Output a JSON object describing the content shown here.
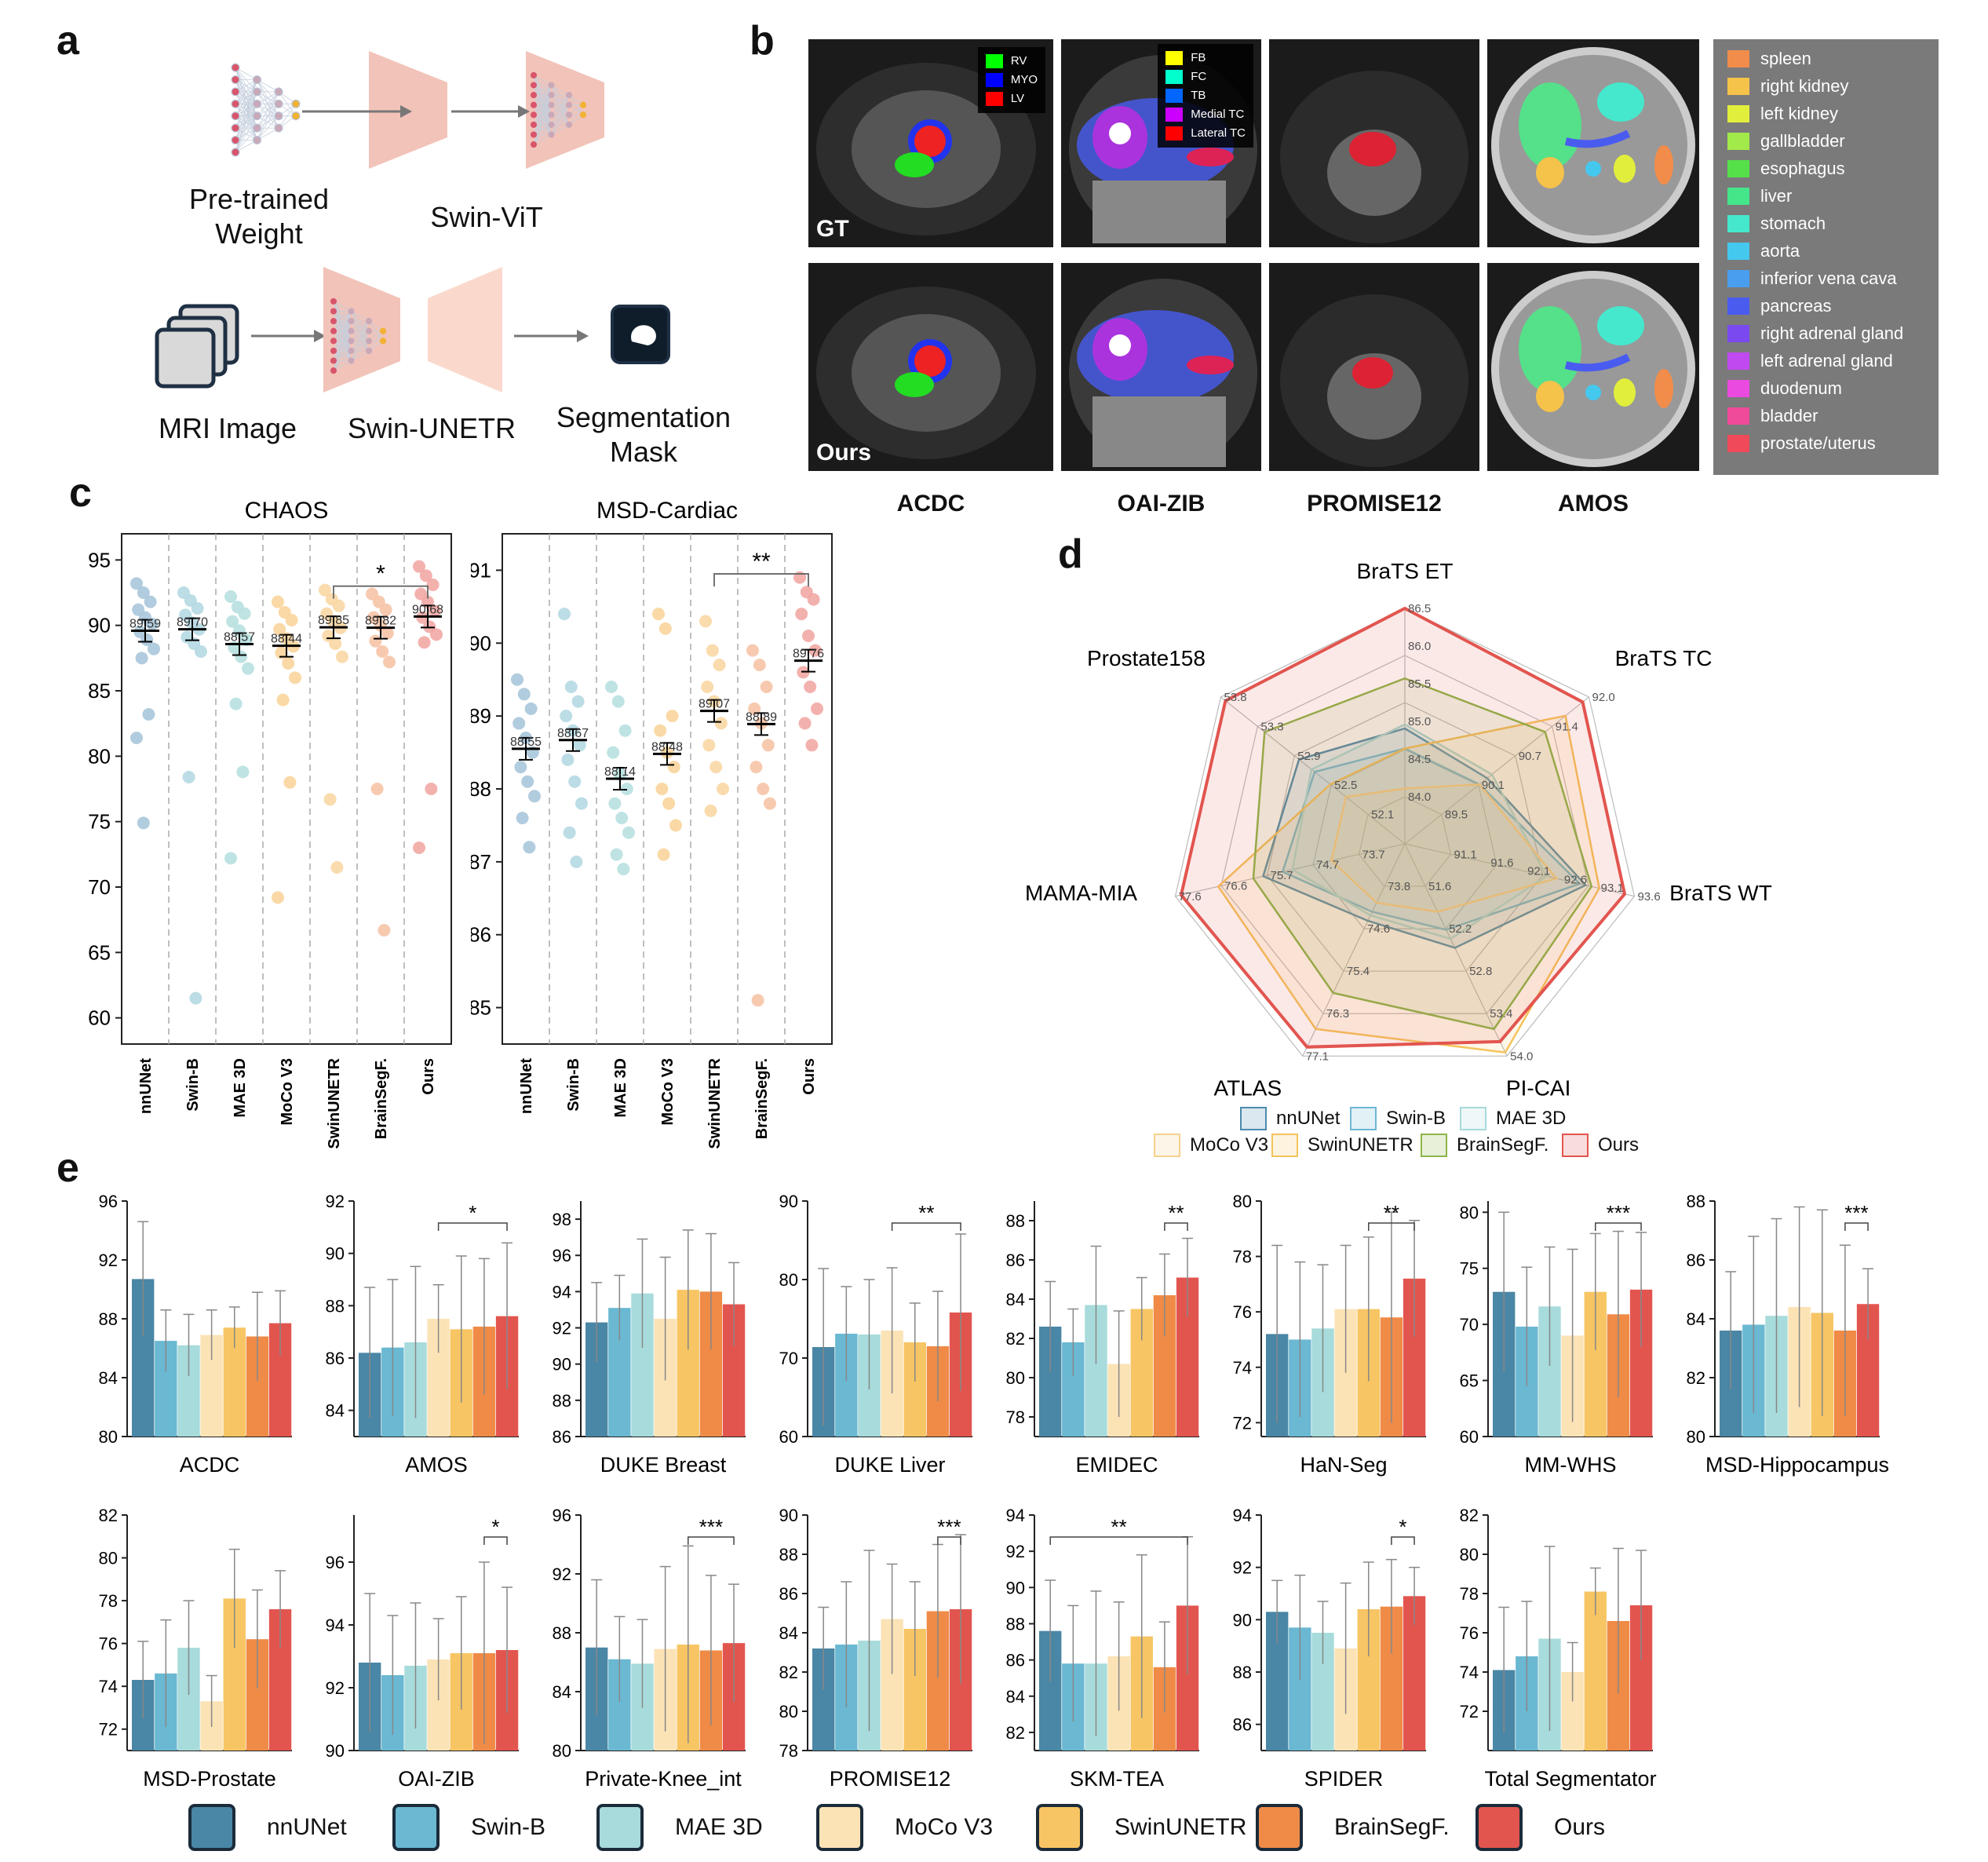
{
  "panel_labels": {
    "a": "a",
    "b": "b",
    "c": "c",
    "d": "d",
    "e": "e"
  },
  "panel_a": {
    "pretrained": "Pre-trained\nWeight",
    "swin_vit": "Swin-ViT",
    "mri_image": "MRI Image",
    "swin_unetr": "Swin-UNETR",
    "seg_mask": "Segmentation\nMask"
  },
  "panel_b": {
    "row_labels": [
      "GT",
      "Ours"
    ],
    "datasets": [
      "ACDC",
      "OAI-ZIB",
      "PROMISE12",
      "AMOS"
    ],
    "acdc_legend": [
      {
        "label": "RV",
        "color": "#00ff00"
      },
      {
        "label": "MYO",
        "color": "#0000ff"
      },
      {
        "label": "LV",
        "color": "#ff0000"
      }
    ],
    "oai_legend": [
      {
        "label": "FB",
        "color": "#ffff00"
      },
      {
        "label": "FC",
        "color": "#00ffcc"
      },
      {
        "label": "TB",
        "color": "#0066ff"
      },
      {
        "label": "Medial TC",
        "color": "#cc00ff"
      },
      {
        "label": "Lateral TC",
        "color": "#ff0000"
      }
    ],
    "amos_legend": [
      {
        "label": "spleen",
        "color": "#f28c4a"
      },
      {
        "label": "right kidney",
        "color": "#f5c24a"
      },
      {
        "label": "left kidney",
        "color": "#e2ee3c"
      },
      {
        "label": "gallbladder",
        "color": "#a2ea4a"
      },
      {
        "label": "esophagus",
        "color": "#55e04a"
      },
      {
        "label": "liver",
        "color": "#45e58a"
      },
      {
        "label": "stomach",
        "color": "#45e8cc"
      },
      {
        "label": "aorta",
        "color": "#45c8ee"
      },
      {
        "label": "inferior vena cava",
        "color": "#4a9ef0"
      },
      {
        "label": "pancreas",
        "color": "#4a5cf0"
      },
      {
        "label": "right adrenal gland",
        "color": "#7a4af0"
      },
      {
        "label": "left adrenal gland",
        "color": "#c04af0"
      },
      {
        "label": "duodenum",
        "color": "#ea4ae0"
      },
      {
        "label": "bladder",
        "color": "#f04a9a"
      },
      {
        "label": "prostate/uterus",
        "color": "#f04a5a"
      }
    ]
  },
  "chart_data": [
    {
      "type": "scatter",
      "panel": "c",
      "title": "CHAOS",
      "categories": [
        "nnUNet",
        "Swin-B",
        "MAE 3D",
        "MoCo V3",
        "SwinUNETR",
        "BrainSegF.",
        "Ours"
      ],
      "means": [
        89.59,
        89.7,
        88.57,
        88.44,
        89.85,
        89.82,
        90.68
      ],
      "mean_labels": [
        "89.59",
        "89.70",
        "88.57",
        "88.44",
        "89.85",
        "89.82",
        "90.68"
      ],
      "ylim": [
        58,
        97
      ],
      "yticks": [
        60,
        65,
        70,
        75,
        80,
        85,
        90,
        95
      ],
      "points": [
        [
          93.2,
          92.5,
          91.8,
          91.2,
          90.6,
          90.1,
          89.5,
          88.9,
          88.2,
          87.5,
          83.2,
          81.4,
          74.9
        ],
        [
          92.5,
          91.9,
          91.3,
          90.8,
          90.2,
          89.7,
          89.1,
          88.6,
          88.0,
          78.4,
          61.5
        ],
        [
          92.2,
          91.4,
          90.9,
          90.3,
          89.6,
          88.9,
          88.3,
          87.6,
          86.7,
          84.0,
          78.8,
          72.2
        ],
        [
          91.8,
          91.0,
          90.4,
          89.7,
          89.0,
          88.4,
          87.9,
          87.1,
          86.0,
          84.3,
          78.0,
          69.2
        ],
        [
          92.7,
          92.0,
          91.5,
          90.9,
          90.3,
          89.8,
          89.2,
          88.6,
          87.6,
          76.7,
          71.5
        ],
        [
          92.4,
          91.8,
          91.2,
          90.6,
          90.0,
          89.4,
          88.8,
          88.0,
          87.2,
          77.5,
          66.7
        ],
        [
          94.5,
          93.8,
          93.1,
          92.4,
          91.8,
          91.1,
          90.6,
          89.9,
          89.3,
          88.7,
          77.5,
          73.0
        ]
      ],
      "significance": {
        "from": 4,
        "to": 6,
        "label": "*"
      }
    },
    {
      "type": "scatter",
      "panel": "c",
      "title": "MSD-Cardiac",
      "categories": [
        "nnUNet",
        "Swin-B",
        "MAE 3D",
        "MoCo V3",
        "SwinUNETR",
        "BrainSegF.",
        "Ours"
      ],
      "means": [
        88.55,
        88.67,
        88.14,
        88.48,
        89.07,
        88.89,
        89.76
      ],
      "mean_labels": [
        "88.55",
        "88.67",
        "88.14",
        "88.48",
        "89.07",
        "88.89",
        "89.76"
      ],
      "ylim": [
        84.5,
        91.5
      ],
      "yticks": [
        85,
        86,
        87,
        88,
        89,
        90,
        91
      ],
      "points": [
        [
          89.5,
          89.3,
          89.1,
          88.9,
          88.7,
          88.5,
          88.3,
          88.1,
          87.9,
          87.6,
          87.2
        ],
        [
          90.4,
          89.4,
          89.2,
          89.0,
          88.8,
          88.6,
          88.4,
          88.1,
          87.8,
          87.4,
          87.0
        ],
        [
          89.4,
          89.2,
          88.8,
          88.5,
          88.2,
          88.0,
          87.8,
          87.6,
          87.4,
          87.1,
          86.9
        ],
        [
          90.4,
          90.2,
          89.0,
          88.8,
          88.5,
          88.3,
          88.0,
          87.8,
          87.5,
          87.1
        ],
        [
          90.3,
          89.9,
          89.7,
          89.4,
          89.2,
          88.9,
          88.6,
          88.3,
          88.0,
          87.7
        ],
        [
          89.9,
          89.7,
          89.4,
          89.1,
          88.9,
          88.6,
          88.3,
          88.0,
          87.8,
          85.1
        ],
        [
          90.9,
          90.7,
          90.6,
          90.4,
          90.1,
          89.9,
          89.6,
          89.4,
          89.1,
          88.9,
          88.6
        ]
      ],
      "significance": {
        "from": 4,
        "to": 6,
        "label": "**"
      }
    },
    {
      "type": "radar",
      "panel": "d",
      "axes": [
        "BraTS ET",
        "BraTS TC",
        "BraTS WT",
        "PI-CAI",
        "ATLAS",
        "MAMA-MIA",
        "Prostate158"
      ],
      "axis_ticks": [
        [
          "84.0",
          "84.5",
          "85.0",
          "85.5",
          "86.0",
          "86.5"
        ],
        [
          "89.5",
          "90.1",
          "90.7",
          "91.4",
          "92.0"
        ],
        [
          "91.1",
          "91.6",
          "92.1",
          "92.6",
          "93.1",
          "93.6"
        ],
        [
          "51.6",
          "52.2",
          "52.8",
          "53.4",
          "54.0"
        ],
        [
          "73.8",
          "74.6",
          "75.4",
          "76.3",
          "77.1"
        ],
        [
          "73.7",
          "74.7",
          "75.7",
          "76.6",
          "77.6"
        ],
        [
          "52.1",
          "52.5",
          "52.9",
          "53.3",
          "53.8"
        ]
      ],
      "series": [
        {
          "name": "nnUNet",
          "color": "#4b8bb0",
          "values": [
            0.4,
            0.35,
            0.75,
            0.4,
            0.25,
            0.55,
            0.5
          ]
        },
        {
          "name": "Swin-B",
          "color": "#6fb7d4",
          "values": [
            0.3,
            0.3,
            0.72,
            0.3,
            0.2,
            0.45,
            0.4
          ]
        },
        {
          "name": "MAE 3D",
          "color": "#a8dada",
          "values": [
            0.42,
            0.38,
            0.55,
            0.35,
            0.22,
            0.4,
            0.42
          ]
        },
        {
          "name": "MoCo V3",
          "color": "#f6d28e",
          "values": [
            0.1,
            0.3,
            0.6,
            0.2,
            0.15,
            0.2,
            0.2
          ]
        },
        {
          "name": "SwinUNETR",
          "color": "#f5c35b",
          "values": [
            0.3,
            0.85,
            0.82,
            0.98,
            0.85,
            0.78,
            0.3
          ]
        },
        {
          "name": "BrainSegF.",
          "color": "#8db548",
          "values": [
            0.65,
            0.72,
            0.78,
            0.85,
            0.65,
            0.6,
            0.72
          ]
        },
        {
          "name": "Ours",
          "color": "#e2554f",
          "values": [
            1.0,
            0.96,
            0.95,
            0.92,
            0.95,
            0.97,
            0.97
          ]
        }
      ]
    },
    {
      "type": "bar",
      "panel": "e",
      "series_names": [
        "nnUNet",
        "Swin-B",
        "MAE 3D",
        "MoCo V3",
        "SwinUNETR",
        "BrainSegF.",
        "Ours"
      ],
      "colors": [
        "#4a86a5",
        "#6ab8d2",
        "#a8dbdb",
        "#fbe3b6",
        "#f7c563",
        "#ef8b47",
        "#e2554f"
      ],
      "charts": [
        {
          "title": "ACDC",
          "ylim": [
            80,
            96
          ],
          "yticks": [
            80,
            84,
            88,
            92,
            96
          ],
          "values": [
            90.7,
            86.5,
            86.2,
            86.9,
            87.4,
            86.8,
            87.7
          ],
          "errors": [
            3.9,
            2.1,
            2.1,
            1.7,
            1.4,
            3.0,
            2.2
          ],
          "sig": null
        },
        {
          "title": "AMOS",
          "ylim": [
            83,
            92
          ],
          "yticks": [
            84,
            86,
            88,
            90,
            92
          ],
          "values": [
            86.2,
            86.4,
            86.6,
            87.5,
            87.1,
            87.2,
            87.6
          ],
          "errors": [
            2.5,
            2.6,
            2.9,
            1.3,
            2.8,
            2.6,
            2.8
          ],
          "sig": {
            "from": 3,
            "to": 6,
            "label": "*"
          }
        },
        {
          "title": "DUKE Breast",
          "ylim": [
            86,
            99
          ],
          "yticks": [
            86,
            88,
            90,
            92,
            94,
            96,
            98
          ],
          "values": [
            92.3,
            93.1,
            93.9,
            92.5,
            94.1,
            94.0,
            93.3
          ],
          "errors": [
            2.2,
            1.8,
            3.0,
            3.4,
            3.3,
            3.2,
            2.3
          ],
          "sig": null
        },
        {
          "title": "DUKE Liver",
          "ylim": [
            60,
            90
          ],
          "yticks": [
            60,
            70,
            80,
            90
          ],
          "values": [
            71.4,
            73.1,
            73.0,
            73.5,
            72.0,
            71.5,
            75.8
          ],
          "errors": [
            10,
            6,
            7,
            8,
            5,
            7,
            10
          ],
          "sig": {
            "from": 3,
            "to": 6,
            "label": "**"
          }
        },
        {
          "title": "EMIDEC",
          "ylim": [
            77,
            89
          ],
          "yticks": [
            78,
            80,
            82,
            84,
            86,
            88
          ],
          "values": [
            82.6,
            81.8,
            83.7,
            80.7,
            83.5,
            84.2,
            85.1
          ],
          "errors": [
            2.3,
            1.7,
            3.0,
            2.7,
            1.6,
            2.1,
            2.0
          ],
          "sig": {
            "from": 5,
            "to": 6,
            "label": "**"
          }
        },
        {
          "title": "HaN-Seg",
          "ylim": [
            71.5,
            80
          ],
          "yticks": [
            72,
            74,
            76,
            78,
            80
          ],
          "values": [
            75.2,
            75.0,
            75.4,
            76.1,
            76.1,
            75.8,
            77.2
          ],
          "errors": [
            3.2,
            2.8,
            2.3,
            2.3,
            2.6,
            3.8,
            2.1
          ],
          "sig": {
            "from": 4,
            "to": 6,
            "label": "**"
          }
        },
        {
          "title": "MM-WHS",
          "ylim": [
            60,
            81
          ],
          "yticks": [
            60,
            65,
            70,
            75,
            80
          ],
          "values": [
            72.9,
            69.8,
            71.6,
            69.0,
            72.9,
            70.9,
            73.1
          ],
          "errors": [
            7.1,
            5.3,
            5.3,
            7.7,
            5.2,
            7.4,
            5.1
          ],
          "sig": {
            "from": 4,
            "to": 6,
            "label": "***"
          }
        },
        {
          "title": "MSD-Hippocampus",
          "ylim": [
            80,
            88
          ],
          "yticks": [
            80,
            82,
            84,
            86,
            88
          ],
          "values": [
            83.6,
            83.8,
            84.1,
            84.4,
            84.2,
            83.6,
            84.5
          ],
          "errors": [
            2.0,
            3.0,
            3.3,
            3.4,
            3.5,
            2.9,
            1.2
          ],
          "sig": {
            "from": 5,
            "to": 6,
            "label": "***"
          }
        },
        {
          "title": "MSD-Prostate",
          "ylim": [
            71,
            82
          ],
          "yticks": [
            72,
            74,
            76,
            78,
            80,
            82
          ],
          "values": [
            74.3,
            74.6,
            75.8,
            73.3,
            78.1,
            76.2,
            77.6
          ],
          "errors": [
            1.8,
            2.5,
            2.2,
            1.2,
            2.3,
            2.3,
            1.8
          ],
          "sig": null
        },
        {
          "title": "OAI-ZIB",
          "ylim": [
            90,
            97.5
          ],
          "yticks": [
            90,
            92,
            94,
            96
          ],
          "values": [
            92.8,
            92.4,
            92.7,
            92.9,
            93.1,
            93.1,
            93.2
          ],
          "errors": [
            2.2,
            1.9,
            2.0,
            1.3,
            1.8,
            2.9,
            2.0
          ],
          "sig": {
            "from": 5,
            "to": 6,
            "label": "*"
          }
        },
        {
          "title": "Private-Knee_int",
          "ylim": [
            80,
            96
          ],
          "yticks": [
            80,
            84,
            88,
            92,
            96
          ],
          "values": [
            87.0,
            86.2,
            85.9,
            86.9,
            87.2,
            86.8,
            87.3
          ],
          "errors": [
            4.6,
            2.9,
            3.0,
            5.6,
            6.7,
            5.1,
            4.0
          ],
          "sig": {
            "from": 4,
            "to": 6,
            "label": "***"
          }
        },
        {
          "title": "PROMISE12",
          "ylim": [
            78,
            90
          ],
          "yticks": [
            78,
            80,
            82,
            84,
            86,
            88,
            90
          ],
          "values": [
            83.2,
            83.4,
            83.6,
            84.7,
            84.2,
            85.1,
            85.2
          ],
          "errors": [
            2.1,
            3.2,
            4.6,
            2.8,
            2.4,
            3.4,
            3.8
          ],
          "sig": {
            "from": 5,
            "to": 6,
            "label": "***"
          }
        },
        {
          "title": "SKM-TEA",
          "ylim": [
            81,
            94
          ],
          "yticks": [
            82,
            84,
            86,
            88,
            90,
            92,
            94
          ],
          "values": [
            87.6,
            85.8,
            85.8,
            86.2,
            87.3,
            85.6,
            89.0
          ],
          "errors": [
            2.8,
            3.2,
            4.0,
            3.0,
            4.5,
            2.5,
            3.8
          ],
          "sig": {
            "from": 0,
            "to": 6,
            "label": "**"
          }
        },
        {
          "title": "SPIDER",
          "ylim": [
            85,
            94
          ],
          "yticks": [
            86,
            88,
            90,
            92,
            94
          ],
          "values": [
            90.3,
            89.7,
            89.5,
            88.9,
            90.4,
            90.5,
            90.9
          ],
          "errors": [
            1.2,
            2.0,
            1.2,
            2.5,
            1.8,
            1.8,
            1.1
          ],
          "sig": {
            "from": 5,
            "to": 6,
            "label": "*"
          }
        },
        {
          "title": "Total Segmentator",
          "ylim": [
            70,
            82
          ],
          "yticks": [
            72,
            74,
            76,
            78,
            80,
            82
          ],
          "values": [
            74.1,
            74.8,
            75.7,
            74.0,
            78.1,
            76.6,
            77.4
          ],
          "errors": [
            3.2,
            2.8,
            4.7,
            1.5,
            1.2,
            3.7,
            2.8
          ],
          "sig": null
        }
      ]
    }
  ],
  "legend_e": [
    "nnUNet",
    "Swin-B",
    "MAE 3D",
    "MoCo V3",
    "SwinUNETR",
    "BrainSegF.",
    "Ours"
  ]
}
